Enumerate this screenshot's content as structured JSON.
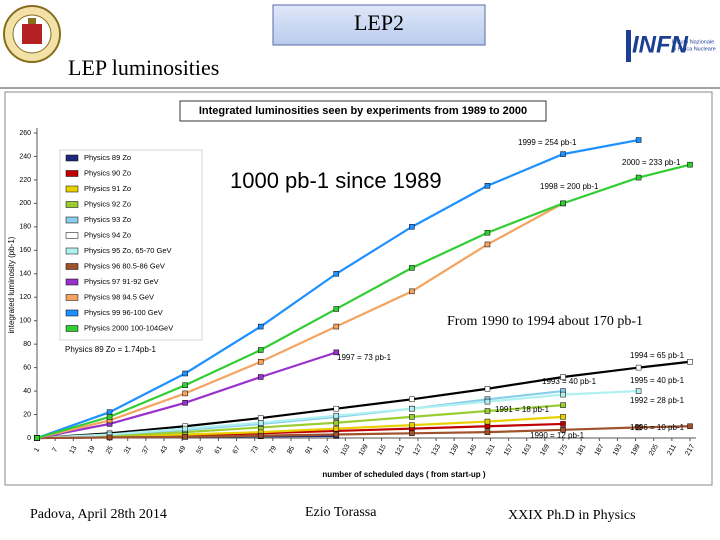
{
  "slide": {
    "header_title": "LEP2",
    "subtitle": "LEP  luminosities",
    "logo_name": "INFN",
    "logo_caption": [
      "Istituto Nazionale",
      "di Fisica Nucleare"
    ],
    "footer": [
      "Padova, April 28th 2014",
      "Ezio Torassa",
      "XXIX  Ph.D in Physics"
    ]
  },
  "chart_data": {
    "type": "line",
    "title": "Integrated luminosities seen by experiments from 1989 to 2000",
    "y_label": "integrated luminosity (pb-1)",
    "x_label": "number of scheduled days ( from start-up )",
    "x": [
      1,
      25,
      50,
      75,
      100,
      125,
      150,
      175,
      200,
      217
    ],
    "xlim": [
      1,
      217
    ],
    "xticks": [
      1,
      7,
      13,
      19,
      25,
      31,
      37,
      43,
      49,
      55,
      61,
      67,
      73,
      79,
      85,
      91,
      97,
      103,
      109,
      115,
      121,
      127,
      133,
      139,
      145,
      151,
      157,
      163,
      169,
      175,
      181,
      187,
      193,
      199,
      205,
      211,
      217
    ],
    "ylim": [
      0,
      260
    ],
    "yticks": [
      0,
      20,
      40,
      60,
      80,
      100,
      120,
      140,
      160,
      180,
      200,
      220,
      240,
      260
    ],
    "grid": false,
    "series": [
      {
        "name": "Physics 89 Zo",
        "color": "#1f2a7a",
        "values": [
          0,
          0.5,
          1.0,
          1.5,
          1.74,
          null,
          null,
          null,
          null,
          null
        ]
      },
      {
        "name": "Physics 90 Zo",
        "color": "#c00000",
        "values": [
          0,
          1,
          2,
          4,
          6,
          8,
          10,
          12,
          null,
          null
        ]
      },
      {
        "name": "Physics 91 Zo",
        "color": "#e8d000",
        "values": [
          0,
          1.5,
          3,
          5,
          8,
          11,
          14,
          18,
          null,
          null
        ]
      },
      {
        "name": "Physics 92 Zo",
        "color": "#9acd32",
        "values": [
          0,
          2,
          5,
          9,
          13,
          18,
          23,
          28,
          null,
          null
        ]
      },
      {
        "name": "Physics 93 Zo",
        "color": "#87ceeb",
        "values": [
          0,
          3,
          7,
          12,
          18,
          25,
          33,
          40,
          null,
          null
        ]
      },
      {
        "name": "Physics 94 Zo",
        "color": "#ffffff",
        "values": [
          0,
          4,
          10,
          17,
          25,
          33,
          42,
          52,
          60,
          65
        ]
      },
      {
        "name": "Physics 95 Zo, 65-70 GeV",
        "color": "#b0f0f0",
        "values": [
          0,
          3,
          8,
          13,
          19,
          25,
          31,
          37,
          40,
          null
        ]
      },
      {
        "name": "Physics 96 80.5-86 GeV",
        "color": "#a0522d",
        "values": [
          0,
          0.5,
          1,
          2,
          3,
          4,
          5,
          7,
          9,
          10
        ]
      },
      {
        "name": "Physics 97 91-92 GeV",
        "color": "#9932cc",
        "values": [
          0,
          12,
          30,
          52,
          73,
          null,
          null,
          null,
          null,
          null
        ]
      },
      {
        "name": "Physics 98 94.5 GeV",
        "color": "#f4a460",
        "values": [
          0,
          15,
          38,
          65,
          95,
          125,
          165,
          200,
          null,
          null
        ]
      },
      {
        "name": "Physics 99 96-100 GeV",
        "color": "#1e90ff",
        "values": [
          0,
          22,
          55,
          95,
          140,
          180,
          215,
          242,
          254,
          null
        ]
      },
      {
        "name": "Physics 2000 100-104GeV",
        "color": "#32cd32",
        "values": [
          0,
          18,
          45,
          75,
          110,
          145,
          175,
          200,
          222,
          233
        ]
      }
    ],
    "annotations": [
      "1000 pb-1 since 1989",
      "1999 = 254 pb-1",
      "2000 = 233 pb-1",
      "1998 = 200 pb-1",
      "From 1990 to 1994 about 170 pb-1",
      "1997 = 73 pb-1",
      "1994 = 65 pb-1",
      "1993 = 40 pb-1",
      "1995 = 40 pb-1",
      "1992 = 28 pb-1",
      "1991 = 18 pb-1",
      "1990 = 12 pb-1",
      "1996 = 10 pb-1",
      "Physics 89 Zo = 1.74pb-1"
    ]
  }
}
